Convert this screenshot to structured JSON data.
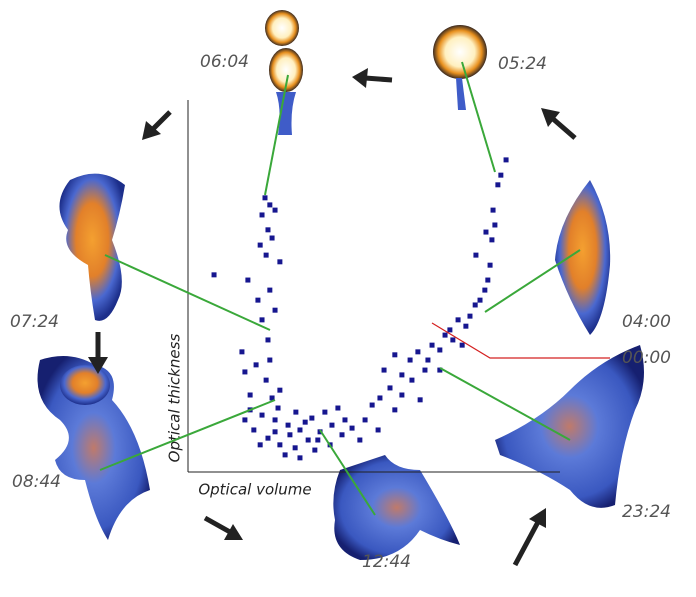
{
  "chart_data": {
    "type": "scatter",
    "x_label": "Optical volume",
    "y_label": "Optical thickness",
    "annotations": [
      "06:04",
      "05:24",
      "07:24",
      "04:00",
      "00:00",
      "08:44",
      "23:24",
      "12:44"
    ],
    "color": "#16168f",
    "xlim": [
      0,
      100
    ],
    "ylim": [
      0,
      100
    ],
    "x": [
      20.7,
      22.0,
      23.4,
      19.9,
      21.5,
      22.6,
      19.4,
      21.0,
      24.7,
      7.0,
      16.1,
      22.0,
      18.8,
      23.4,
      19.9,
      21.5,
      14.5,
      22.0,
      18.3,
      15.3,
      21.0,
      24.7,
      16.7,
      22.6,
      16.7,
      19.9,
      23.4,
      26.9,
      30.1,
      33.3,
      36.8,
      40.3,
      17.7,
      21.5,
      24.7,
      28.8,
      32.3,
      35.5,
      38.7,
      42.2,
      19.4,
      26.1,
      30.1,
      34.1,
      15.3,
      27.4,
      31.5,
      34.9,
      38.2,
      23.4,
      41.4,
      44.1,
      46.2,
      29.0,
      24.2,
      47.6,
      49.5,
      51.6,
      51.1,
      54.3,
      55.6,
      57.5,
      59.7,
      61.8,
      63.7,
      65.6,
      67.7,
      69.1,
      70.4,
      72.6,
      73.7,
      75.8,
      77.2,
      78.5,
      79.8,
      80.6,
      81.2,
      77.4,
      81.7,
      82.5,
      80.1,
      82.0,
      83.3,
      85.5,
      84.1,
      55.6,
      52.7,
      57.5,
      60.2,
      64.5,
      71.2,
      74.7,
      67.7,
      62.4
    ],
    "values": [
      73.7,
      71.8,
      70.4,
      69.1,
      65.1,
      62.9,
      61.0,
      58.3,
      56.5,
      53.0,
      51.6,
      48.9,
      46.2,
      43.5,
      40.9,
      35.5,
      32.3,
      30.1,
      28.8,
      26.9,
      24.7,
      22.0,
      20.7,
      19.9,
      16.7,
      15.3,
      14.0,
      12.6,
      11.3,
      14.5,
      16.1,
      17.2,
      11.3,
      9.1,
      7.3,
      6.5,
      8.6,
      10.8,
      12.6,
      14.0,
      7.3,
      4.6,
      3.8,
      5.9,
      14.0,
      10.0,
      13.4,
      8.6,
      7.3,
      10.8,
      10.0,
      11.8,
      8.6,
      16.1,
      17.2,
      14.0,
      18.0,
      19.9,
      11.3,
      22.6,
      16.7,
      26.1,
      30.1,
      32.3,
      27.4,
      34.1,
      32.8,
      36.8,
      38.2,
      40.9,
      34.1,
      41.9,
      44.9,
      46.2,
      48.9,
      51.6,
      55.6,
      58.3,
      62.4,
      66.4,
      64.5,
      70.4,
      77.2,
      83.9,
      79.8,
      31.5,
      27.4,
      20.7,
      24.7,
      30.1,
      35.5,
      39.2,
      27.4,
      19.4
    ]
  }
}
